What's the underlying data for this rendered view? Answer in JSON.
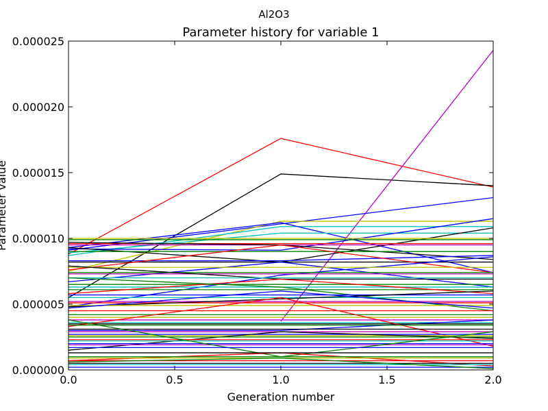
{
  "chart_data": {
    "type": "line",
    "suptitle": "Al2O3",
    "title": "Parameter history for variable 1",
    "xlabel": "Generation number",
    "ylabel": "Parameter value",
    "xlim": [
      0.0,
      2.0
    ],
    "ylim": [
      0.0,
      2.5e-05
    ],
    "x": [
      0,
      1,
      2
    ],
    "xticks": [
      0.0,
      0.5,
      1.0,
      1.5,
      2.0
    ],
    "xtick_labels": [
      "0.0",
      "0.5",
      "1.0",
      "1.5",
      "2.0"
    ],
    "yticks": [
      0.0,
      5e-06,
      1e-05,
      1.5e-05,
      2e-05,
      2.5e-05
    ],
    "ytick_labels": [
      "0.000000",
      "0.000005",
      "0.000010",
      "0.000015",
      "0.000020",
      "0.000025"
    ],
    "grid": false,
    "legend": "none",
    "series": [
      {
        "color": "#ff0000",
        "values": [
          8.8e-06,
          1.76e-05,
          1.39e-05
        ]
      },
      {
        "color": "#000000",
        "values": [
          5.5e-06,
          1.49e-05,
          1.4e-05
        ]
      },
      {
        "color": "#bf00bf",
        "values": [
          null,
          3.7e-06,
          2.43e-05
        ]
      },
      {
        "color": "#0000ff",
        "values": [
          9.1e-06,
          1.11e-05,
          1.31e-05
        ]
      },
      {
        "color": "#bfbf00",
        "values": [
          7.5e-06,
          1.13e-05,
          1.13e-05
        ]
      },
      {
        "color": "#00bfbf",
        "values": [
          8.7e-06,
          1.09e-05,
          1.09e-05
        ]
      },
      {
        "color": "#0000ff",
        "values": [
          9.3e-06,
          1.12e-05,
          7.4e-06
        ]
      },
      {
        "color": "#00bfbf",
        "values": [
          8.9e-06,
          1.04e-05,
          1.04e-05
        ]
      },
      {
        "color": "#0000ff",
        "values": [
          9.2e-06,
          9.1e-06,
          1.15e-05
        ]
      },
      {
        "color": "#000000",
        "values": [
          9.3e-06,
          8.2e-06,
          1.08e-05
        ]
      },
      {
        "color": "#bfbf00",
        "values": [
          1e-05,
          1e-05,
          1e-05
        ]
      },
      {
        "color": "#008000",
        "values": [
          9.9e-06,
          9.9e-06,
          9.9e-06
        ]
      },
      {
        "color": "#ff0000",
        "values": [
          9.6e-06,
          9.6e-06,
          9.6e-06
        ]
      },
      {
        "color": "#bf00bf",
        "values": [
          9.5e-06,
          9.5e-06,
          9.5e-06
        ]
      },
      {
        "color": "#000000",
        "values": [
          9.7e-06,
          9.5e-06,
          8.4e-06
        ]
      },
      {
        "color": "#008000",
        "values": [
          9e-06,
          9e-06,
          9e-06
        ]
      },
      {
        "color": "#0000ff",
        "values": [
          8.3e-06,
          8.3e-06,
          8.7e-06
        ]
      },
      {
        "color": "#000000",
        "values": [
          8.2e-06,
          8.2e-06,
          8.2e-06
        ]
      },
      {
        "color": "#ff0000",
        "values": [
          7.6e-06,
          9.5e-06,
          7.4e-06
        ]
      },
      {
        "color": "#0000ff",
        "values": [
          6.7e-06,
          8.2e-06,
          6.3e-06
        ]
      },
      {
        "color": "#0000ff",
        "values": [
          4.8e-06,
          7.2e-06,
          8.6e-06
        ]
      },
      {
        "color": "#bfbf00",
        "values": [
          7.8e-06,
          7.8e-06,
          7.8e-06
        ]
      },
      {
        "color": "#008000",
        "values": [
          7.4e-06,
          7.4e-06,
          7.4e-06
        ]
      },
      {
        "color": "#bf00bf",
        "values": [
          7.3e-06,
          7.3e-06,
          7.3e-06
        ]
      },
      {
        "color": "#000000",
        "values": [
          7.9e-06,
          6.9e-06,
          6.9e-06
        ]
      },
      {
        "color": "#00bfbf",
        "values": [
          7e-06,
          7e-06,
          7e-06
        ]
      },
      {
        "color": "#008000",
        "values": [
          6.5e-06,
          6.5e-06,
          6.5e-06
        ]
      },
      {
        "color": "#00bfbf",
        "values": [
          6.3e-06,
          6.3e-06,
          6.3e-06
        ]
      },
      {
        "color": "#008000",
        "values": [
          6.1e-06,
          6.1e-06,
          6.1e-06
        ]
      },
      {
        "color": "#ff0000",
        "values": [
          5.8e-06,
          6.9e-06,
          5.8e-06
        ]
      },
      {
        "color": "#008000",
        "values": [
          7e-06,
          6.3e-06,
          4.5e-06
        ]
      },
      {
        "color": "#0000ff",
        "values": [
          5.7e-06,
          5.7e-06,
          5.7e-06
        ]
      },
      {
        "color": "#00bfbf",
        "values": [
          5.5e-06,
          5.5e-06,
          5.5e-06
        ]
      },
      {
        "color": "#bf00bf",
        "values": [
          5.2e-06,
          5.2e-06,
          5.2e-06
        ]
      },
      {
        "color": "#ff0000",
        "values": [
          5.1e-06,
          5.1e-06,
          5.1e-06
        ]
      },
      {
        "color": "#000000",
        "values": [
          4.8e-06,
          5.4e-06,
          6e-06
        ]
      },
      {
        "color": "#bfbf00",
        "values": [
          4.9e-06,
          4.9e-06,
          4.9e-06
        ]
      },
      {
        "color": "#0000ff",
        "values": [
          4.7e-06,
          6e-06,
          4.7e-06
        ]
      },
      {
        "color": "#ff0000",
        "values": [
          4.5e-06,
          4.5e-06,
          4.5e-06
        ]
      },
      {
        "color": "#008000",
        "values": [
          4.2e-06,
          4.2e-06,
          4.2e-06
        ]
      },
      {
        "color": "#bfbf00",
        "values": [
          4e-06,
          4e-06,
          4e-06
        ]
      },
      {
        "color": "#bf00bf",
        "values": [
          3.8e-06,
          3.8e-06,
          3.8e-06
        ]
      },
      {
        "color": "#00bfbf",
        "values": [
          3.6e-06,
          3.6e-06,
          3.6e-06
        ]
      },
      {
        "color": "#0000ff",
        "values": [
          3e-06,
          3e-06,
          3.8e-06
        ]
      },
      {
        "color": "#000000",
        "values": [
          3.5e-06,
          3.5e-06,
          3.5e-06
        ]
      },
      {
        "color": "#ff0000",
        "values": [
          3.3e-06,
          5.5e-06,
          1.8e-06
        ]
      },
      {
        "color": "#008000",
        "values": [
          3.4e-06,
          3.4e-06,
          3.4e-06
        ]
      },
      {
        "color": "#000000",
        "values": [
          3.1e-06,
          3.1e-06,
          3.1e-06
        ]
      },
      {
        "color": "#bf00bf",
        "values": [
          2.9e-06,
          2.9e-06,
          2.9e-06
        ]
      },
      {
        "color": "#0000ff",
        "values": [
          2.7e-06,
          2.7e-06,
          2.7e-06
        ]
      },
      {
        "color": "#bfbf00",
        "values": [
          2.6e-06,
          2.6e-06,
          2.6e-06
        ]
      },
      {
        "color": "#000000",
        "values": [
          1.5e-06,
          2.9e-06,
          2.4e-06
        ]
      },
      {
        "color": "#008000",
        "values": [
          2.5e-06,
          2.5e-06,
          2.5e-06
        ]
      },
      {
        "color": "#ff0000",
        "values": [
          2.3e-06,
          2.3e-06,
          2.3e-06
        ]
      },
      {
        "color": "#00bfbf",
        "values": [
          2.2e-06,
          2.2e-06,
          2.2e-06
        ]
      },
      {
        "color": "#0000ff",
        "values": [
          2e-06,
          2e-06,
          2e-06
        ]
      },
      {
        "color": "#bf00bf",
        "values": [
          1.9e-06,
          1.9e-06,
          1.9e-06
        ]
      },
      {
        "color": "#008000",
        "values": [
          3.8e-06,
          1e-06,
          2.9e-06
        ]
      },
      {
        "color": "#ff0000",
        "values": [
          7e-07,
          1.3e-06,
          3e-07
        ]
      },
      {
        "color": "#0000ff",
        "values": [
          1.7e-06,
          1.7e-06,
          1.7e-06
        ]
      },
      {
        "color": "#000000",
        "values": [
          1.3e-06,
          1.3e-06,
          1.3e-06
        ]
      },
      {
        "color": "#008000",
        "values": [
          1e-06,
          1e-06,
          1e-06
        ]
      },
      {
        "color": "#bfbf00",
        "values": [
          9e-07,
          9e-07,
          9e-07
        ]
      },
      {
        "color": "#ff0000",
        "values": [
          7e-07,
          7e-07,
          7e-07
        ]
      },
      {
        "color": "#000000",
        "values": [
          5e-07,
          5e-07,
          5e-07
        ]
      },
      {
        "color": "#00bfbf",
        "values": [
          4e-07,
          4e-07,
          4e-07
        ]
      },
      {
        "color": "#0000ff",
        "values": [
          2e-07,
          2e-07,
          2e-07
        ]
      },
      {
        "color": "#008000",
        "values": [
          6e-07,
          9e-07,
          1e-07
        ]
      }
    ]
  }
}
